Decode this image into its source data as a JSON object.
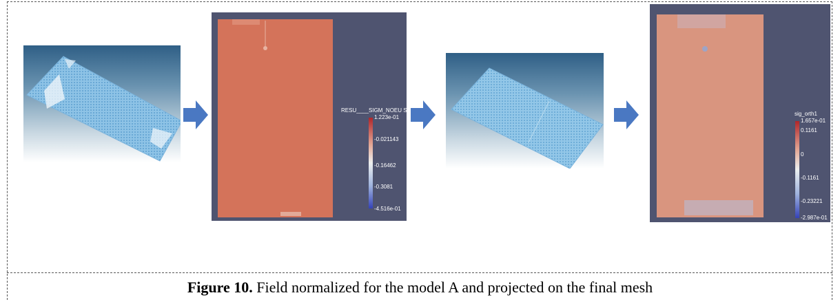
{
  "caption": {
    "label": "Figure 10.",
    "text": " Field normalized for the model A and projected on the final mesh"
  },
  "panels": [
    {
      "kind": "mesh-view"
    },
    {
      "kind": "field-plot",
      "colorbar": {
        "title": "RESU____SIGM_NOEU SIXX",
        "ticks": [
          "1.223e-01",
          "-0.021143",
          "-0.16462",
          "-0.3081",
          "-4.516e-01"
        ]
      }
    },
    {
      "kind": "mesh-view"
    },
    {
      "kind": "field-plot",
      "colorbar": {
        "title": "sig_orth1",
        "ticks": [
          "1.657e-01",
          "0.1161",
          "0",
          "-0.1161",
          "-0.23221",
          "-2.987e-01"
        ]
      }
    }
  ],
  "colors": {
    "arrow": "#4a78c2",
    "plot_background": "#4f5470",
    "field_fill_1": "#d4735a",
    "field_fill_2": "#d9957f",
    "mesh_fill": "#8ec3e6"
  }
}
